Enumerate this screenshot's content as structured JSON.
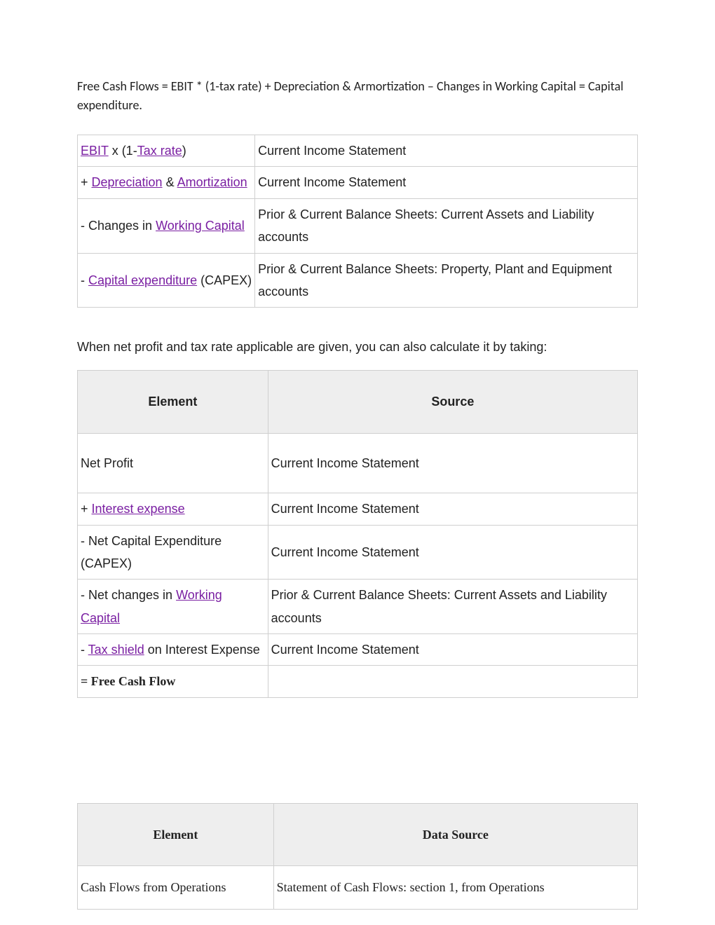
{
  "formula": "Free Cash Flows = EBIT * (1-tax rate) + Depreciation & Armortization – Changes in Working Capital = Capital expenditure.",
  "table1": {
    "rows": [
      {
        "col1_parts": [
          {
            "text": "EBIT",
            "link": true
          },
          {
            "text": " x (1-",
            "link": false
          },
          {
            "text": "Tax rate",
            "link": true
          },
          {
            "text": ")",
            "link": false
          }
        ],
        "col2": "Current Income Statement"
      },
      {
        "col1_parts": [
          {
            "text": "+ ",
            "link": false
          },
          {
            "text": "Depreciation",
            "link": true
          },
          {
            "text": " & ",
            "link": false
          },
          {
            "text": "Amortization",
            "link": true
          }
        ],
        "col2": "Current Income Statement"
      },
      {
        "col1_parts": [
          {
            "text": "- Changes in ",
            "link": false
          },
          {
            "text": "Working Capital",
            "link": true
          }
        ],
        "col2": "Prior & Current Balance Sheets: Current Assets and Liability accounts"
      },
      {
        "col1_parts": [
          {
            "text": "- ",
            "link": false
          },
          {
            "text": "Capital expenditure",
            "link": true
          },
          {
            "text": " (CAPEX)",
            "link": false
          }
        ],
        "col2": "Prior & Current Balance Sheets: Property, Plant and Equipment accounts"
      }
    ]
  },
  "between_text": "When net profit and tax rate applicable are given, you can also calculate it by taking:",
  "table2": {
    "header": {
      "col1": "Element",
      "col2": "Source"
    },
    "rows": [
      {
        "col1_parts": [
          {
            "text": "Net Profit",
            "link": false
          }
        ],
        "col2": "Current Income Statement",
        "tall": true
      },
      {
        "col1_parts": [
          {
            "text": "+ ",
            "link": false
          },
          {
            "text": "Interest expense",
            "link": true
          }
        ],
        "col2": "Current Income Statement"
      },
      {
        "col1_parts": [
          {
            "text": "- Net Capital Expenditure (CAPEX)",
            "link": false
          }
        ],
        "col2": "Current Income Statement"
      },
      {
        "col1_parts": [
          {
            "text": "- Net changes in ",
            "link": false
          },
          {
            "text": "Working Capital",
            "link": true
          }
        ],
        "col2": "Prior & Current Balance Sheets: Current Assets and Liability accounts"
      },
      {
        "col1_parts": [
          {
            "text": "- ",
            "link": false
          },
          {
            "text": "Tax shield",
            "link": true
          },
          {
            "text": " on Interest Expense",
            "link": false
          }
        ],
        "col2": "Current Income Statement"
      },
      {
        "col1_parts": [
          {
            "text": "= Free Cash Flow",
            "link": false,
            "boldserif": true
          }
        ],
        "col2": ""
      }
    ]
  },
  "table3": {
    "header": {
      "col1": "Element",
      "col2": "Data Source"
    },
    "rows": [
      {
        "col1": "Cash Flows from Operations",
        "col2": "Statement of Cash Flows: section 1, from Operations"
      }
    ]
  }
}
